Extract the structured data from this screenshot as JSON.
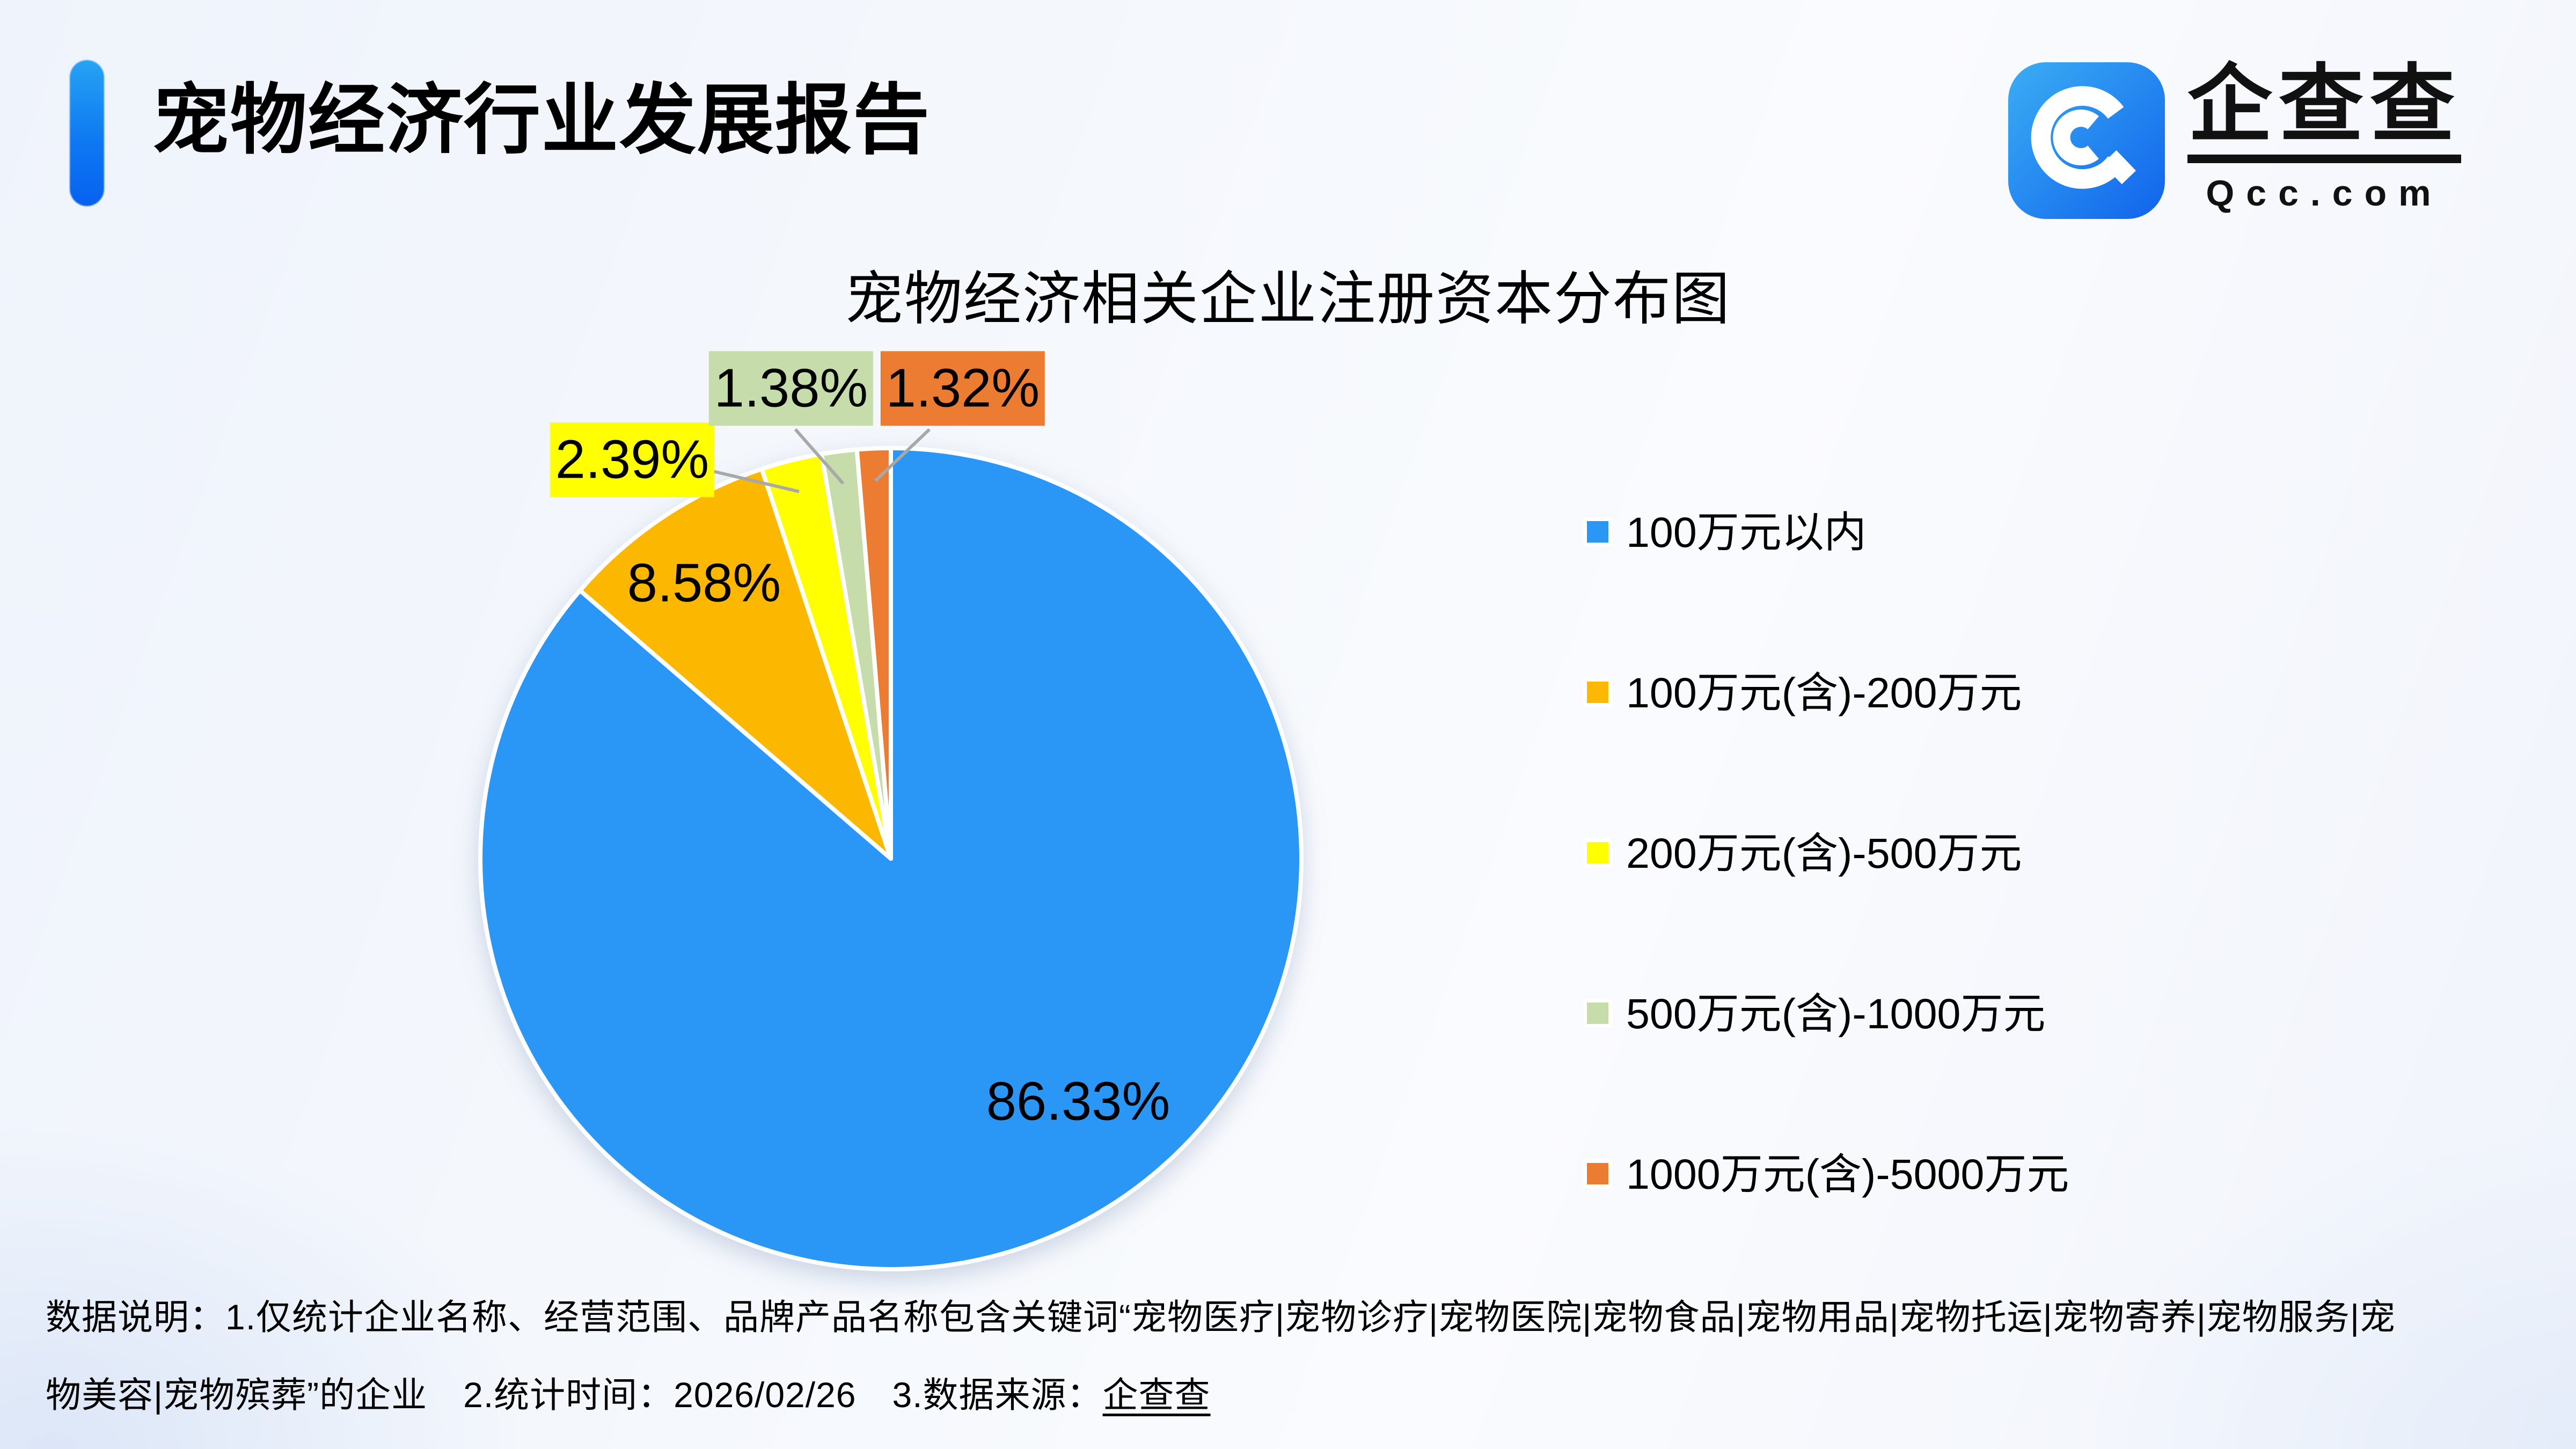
{
  "header": {
    "title": "宠物经济行业发展报告",
    "logo": {
      "brand": "企查查",
      "domain": "Qcc.com"
    }
  },
  "chart_data": {
    "type": "pie",
    "title": "宠物经济相关企业注册资本分布图",
    "legend_position": "right",
    "direction": "clockwise",
    "start_angle_deg": 0,
    "label_format": "percent-two-decimals",
    "slices": [
      {
        "label": "100万元以内",
        "value": 86.33,
        "color": "#2C96F5",
        "label_style": "inside"
      },
      {
        "label": "100万元(含)-200万元",
        "value": 8.58,
        "color": "#FCB804",
        "label_style": "inside"
      },
      {
        "label": "200万元(含)-500万元",
        "value": 2.39,
        "color": "#FFFF00",
        "label_style": "boxed-callout"
      },
      {
        "label": "500万元(含)-1000万元",
        "value": 1.38,
        "color": "#C6DCAA",
        "label_style": "boxed-callout"
      },
      {
        "label": "1000万元(含)-5000万元",
        "value": 1.32,
        "color": "#EB7C32",
        "label_style": "boxed-callout"
      }
    ],
    "leader_line_color": "#A8A8A8",
    "slice_border_color": "#FFFFFF"
  },
  "footnote": {
    "line1": "数据说明：1.仅统计企业名称、经营范围、品牌产品名称包含关键词“宠物医疗|宠物诊疗|宠物医院|宠物食品|宠物用品|宠物托运|宠物寄养|宠物服务|宠",
    "line2_prefix": "物美容|宠物殡葬”的企业　2.统计时间：2026/02/26　3.数据来源：",
    "line2_source": "企查查"
  },
  "colors": {
    "accent_bar": "#0E79F2",
    "logo_blue": "#1267EE",
    "background": "#F2F5FC"
  }
}
